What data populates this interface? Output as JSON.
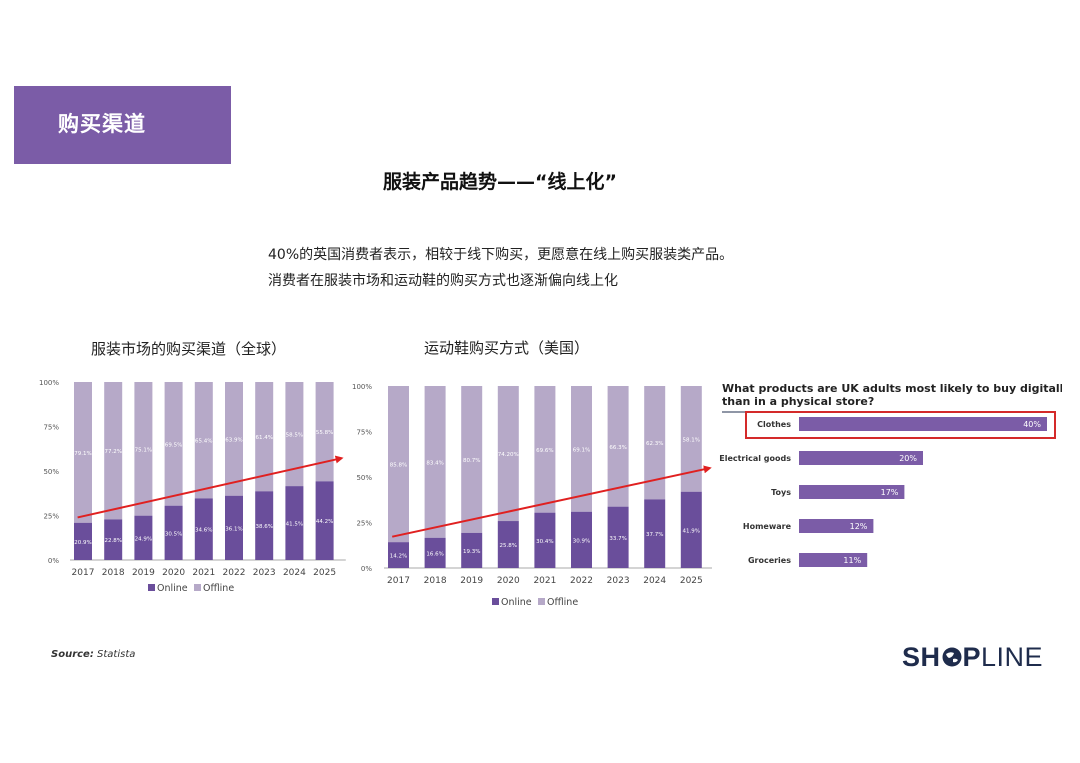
{
  "section_tag": "购买渠道",
  "slide_title": "服装产品趋势——“线上化”",
  "intro": [
    "40%的英国消费者表示，相较于线下购买，更愿意在线上购买服装类产品。",
    "消费者在服装市场和运动鞋的购买方式也逐渐偏向线上化"
  ],
  "source": {
    "label": "Source:",
    "text": "Statista"
  },
  "logo": {
    "part1": "SH",
    "icon": "globe-icon",
    "part2": "P",
    "part3": "LINE"
  },
  "colors": {
    "online": "#6a4e9b",
    "offline": "#b6a9c8",
    "accent": "#7b5ca7",
    "trend": "#e02020",
    "highlight": "#d42a2a"
  },
  "chart_data": [
    {
      "type": "bar",
      "stacked": true,
      "title": "服装市场的购买渠道（全球）",
      "categories": [
        "2017",
        "2018",
        "2019",
        "2020",
        "2021",
        "2022",
        "2023",
        "2024",
        "2025"
      ],
      "series": [
        {
          "name": "Online",
          "values": [
            20.9,
            22.8,
            24.9,
            30.5,
            34.6,
            36.1,
            38.6,
            41.5,
            44.2
          ],
          "labels": [
            "20.9%",
            "22.8%",
            "24.9%",
            "30.5%",
            "34.6%",
            "36.1%",
            "38.6%",
            "41.5%",
            "44.2%"
          ]
        },
        {
          "name": "Offline",
          "values": [
            79.1,
            77.2,
            75.1,
            69.5,
            65.4,
            63.9,
            61.4,
            58.5,
            55.8
          ],
          "labels": [
            "79.1%",
            "77.2%",
            "75.1%",
            "69.5%",
            "65.4%",
            "63.9%",
            "61.4%",
            "58.5%",
            "55.8%"
          ]
        }
      ],
      "yticks": [
        "0%",
        "25%",
        "50%",
        "75%",
        "100%"
      ],
      "ylim": [
        0,
        100
      ],
      "legend": "bottom",
      "trend_arrow": true
    },
    {
      "type": "bar",
      "stacked": true,
      "title": "运动鞋购买方式（美国）",
      "categories": [
        "2017",
        "2018",
        "2019",
        "2020",
        "2021",
        "2022",
        "2023",
        "2024",
        "2025"
      ],
      "series": [
        {
          "name": "Online",
          "values": [
            14.2,
            16.6,
            19.3,
            25.8,
            30.4,
            30.9,
            33.7,
            37.7,
            41.9
          ],
          "labels": [
            "14.2%",
            "16.6%",
            "19.3%",
            "25.8%",
            "30.4%",
            "30.9%",
            "33.7%",
            "37.7%",
            "41.9%"
          ]
        },
        {
          "name": "Offline",
          "values": [
            85.8,
            83.4,
            80.7,
            74.2,
            69.6,
            69.1,
            66.3,
            62.3,
            58.1
          ],
          "labels": [
            "85.8%",
            "83.4%",
            "80.7%",
            "74.20%",
            "69.6%",
            "69.1%",
            "66.3%",
            "62.3%",
            "58.1%"
          ]
        }
      ],
      "yticks": [
        "0%",
        "25%",
        "50%",
        "75%",
        "100%"
      ],
      "ylim": [
        0,
        100
      ],
      "legend": "bottom",
      "trend_arrow": true
    },
    {
      "type": "bar",
      "orientation": "horizontal",
      "title": "What products are UK adults most likely to buy digitally than in a physical store?",
      "title_lines": [
        "What products are UK adults most likely to buy digitally",
        "than in a physical store?"
      ],
      "categories": [
        "Clothes",
        "Electrical goods",
        "Toys",
        "Homeware",
        "Groceries"
      ],
      "values": [
        40,
        20,
        17,
        12,
        11
      ],
      "labels": [
        "40%",
        "20%",
        "17%",
        "12%",
        "11%"
      ],
      "highlight": "Clothes"
    }
  ]
}
